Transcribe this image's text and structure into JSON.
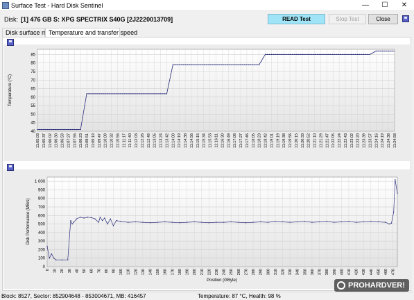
{
  "window": {
    "title": "Surface Test - Hard Disk Sentinel",
    "minimize_glyph": "—",
    "maximize_glyph": "☐",
    "close_glyph": "✕"
  },
  "disk": {
    "label": "Disk:",
    "value": "[1] 476 GB S: XPG SPECTRIX S40G [2J2220013709]"
  },
  "buttons": {
    "read_test": "READ Test",
    "stop_test": "Stop Test",
    "close": "Close"
  },
  "tabs": [
    {
      "label": "Disk surface map",
      "active": false
    },
    {
      "label": "Temperature and transfer speed",
      "active": true
    }
  ],
  "temperature_chart": {
    "ylabel": "Temperature (°C)",
    "yticks": [
      "40",
      "45",
      "50",
      "55",
      "60",
      "65",
      "70",
      "75",
      "80",
      "85"
    ],
    "xticks": [
      "11:05:03",
      "11:05:37",
      "11:06:02",
      "11:06:30",
      "11:06:59",
      "11:07:27",
      "11:07:55",
      "11:08:23",
      "11:08:51",
      "11:09:19",
      "11:09:47",
      "11:10:09",
      "11:10:32",
      "11:10:55",
      "11:11:17",
      "11:11:40",
      "11:12:03",
      "11:12:26",
      "11:12:49",
      "11:13:05",
      "11:13:24",
      "11:13:42",
      "11:14:00",
      "11:14:19",
      "11:14:38",
      "11:14:56",
      "11:15:15",
      "11:15:34",
      "11:15:53",
      "11:16:11",
      "11:16:30",
      "11:16:49",
      "11:17:08",
      "11:17:27",
      "11:17:46",
      "11:18:05",
      "11:18:23",
      "11:18:42",
      "11:19:01",
      "11:19:19",
      "11:19:38",
      "11:19:56",
      "11:20:15",
      "11:20:33",
      "11:20:52",
      "11:21:10",
      "11:21:29",
      "11:21:47",
      "11:22:05",
      "11:22:24",
      "11:22:43",
      "11:23:02",
      "11:23:20",
      "11:23:39",
      "11:23:57",
      "11:24:16",
      "11:24:19",
      "11:24:38",
      "11:24:58"
    ]
  },
  "performance_chart": {
    "ylabel": "Disk Performance (MB/s)",
    "xlabel": "Position (GByte)",
    "yticks": [
      "0",
      "100",
      "200",
      "300",
      "400",
      "500",
      "600",
      "700",
      "800",
      "900",
      "1 000"
    ],
    "xticks": [
      "0",
      "10",
      "20",
      "30",
      "40",
      "50",
      "60",
      "70",
      "80",
      "90",
      "100",
      "110",
      "120",
      "130",
      "140",
      "150",
      "160",
      "170",
      "180",
      "190",
      "200",
      "210",
      "220",
      "230",
      "240",
      "250",
      "260",
      "270",
      "280",
      "290",
      "300",
      "310",
      "320",
      "330",
      "340",
      "350",
      "360",
      "370",
      "380",
      "390",
      "400",
      "410",
      "420",
      "430",
      "440",
      "450",
      "460",
      "470"
    ]
  },
  "chart_data": [
    {
      "type": "line",
      "title": "",
      "xlabel": "",
      "ylabel": "Temperature (°C)",
      "ylim": [
        40,
        88
      ],
      "grid": true,
      "x": [
        "11:05:03",
        "11:08:23",
        "11:08:51",
        "11:13:42",
        "11:14:00",
        "11:18:23",
        "11:18:42",
        "11:23:57",
        "11:24:16",
        "11:24:58"
      ],
      "series": [
        {
          "values": [
            41,
            41,
            62,
            62,
            79,
            79,
            85,
            85,
            87,
            87
          ]
        }
      ]
    },
    {
      "type": "line",
      "title": "",
      "xlabel": "Position (GByte)",
      "ylabel": "Disk Performance (MB/s)",
      "xlim": [
        0,
        476
      ],
      "ylim": [
        0,
        1050
      ],
      "grid": true,
      "x": [
        0,
        3,
        6,
        9,
        12,
        20,
        28,
        32,
        34,
        36,
        40,
        45,
        50,
        55,
        60,
        65,
        70,
        72,
        75,
        78,
        82,
        86,
        90,
        94,
        100,
        110,
        120,
        130,
        140,
        150,
        160,
        170,
        180,
        190,
        200,
        210,
        220,
        230,
        240,
        250,
        260,
        270,
        280,
        290,
        300,
        310,
        320,
        330,
        340,
        350,
        360,
        370,
        380,
        390,
        400,
        410,
        420,
        430,
        440,
        450,
        460,
        465,
        468,
        471,
        473,
        476
      ],
      "series": [
        {
          "values": [
            240,
            100,
            150,
            100,
            80,
            80,
            80,
            540,
            500,
            520,
            560,
            580,
            570,
            580,
            575,
            560,
            520,
            580,
            540,
            570,
            500,
            560,
            480,
            540,
            530,
            520,
            525,
            520,
            515,
            520,
            525,
            520,
            515,
            520,
            525,
            520,
            515,
            520,
            520,
            525,
            520,
            515,
            520,
            525,
            520,
            530,
            525,
            520,
            525,
            530,
            520,
            525,
            530,
            520,
            525,
            530,
            520,
            525,
            530,
            525,
            520,
            500,
            510,
            640,
            1020,
            860
          ]
        }
      ]
    }
  ],
  "status": {
    "left": "Block: 8527, Sector: 852904648 - 853004671, MB: 416457",
    "right": "Temperature: 87  °C,  Health: 98 %"
  },
  "watermark": "PROHARDVER!",
  "colors": {
    "read_button": "#9fe5f7",
    "plot_line": "#2b2f7a",
    "plot_bg_top": "#ffffff",
    "plot_bg_bottom": "#e3e3e3"
  }
}
